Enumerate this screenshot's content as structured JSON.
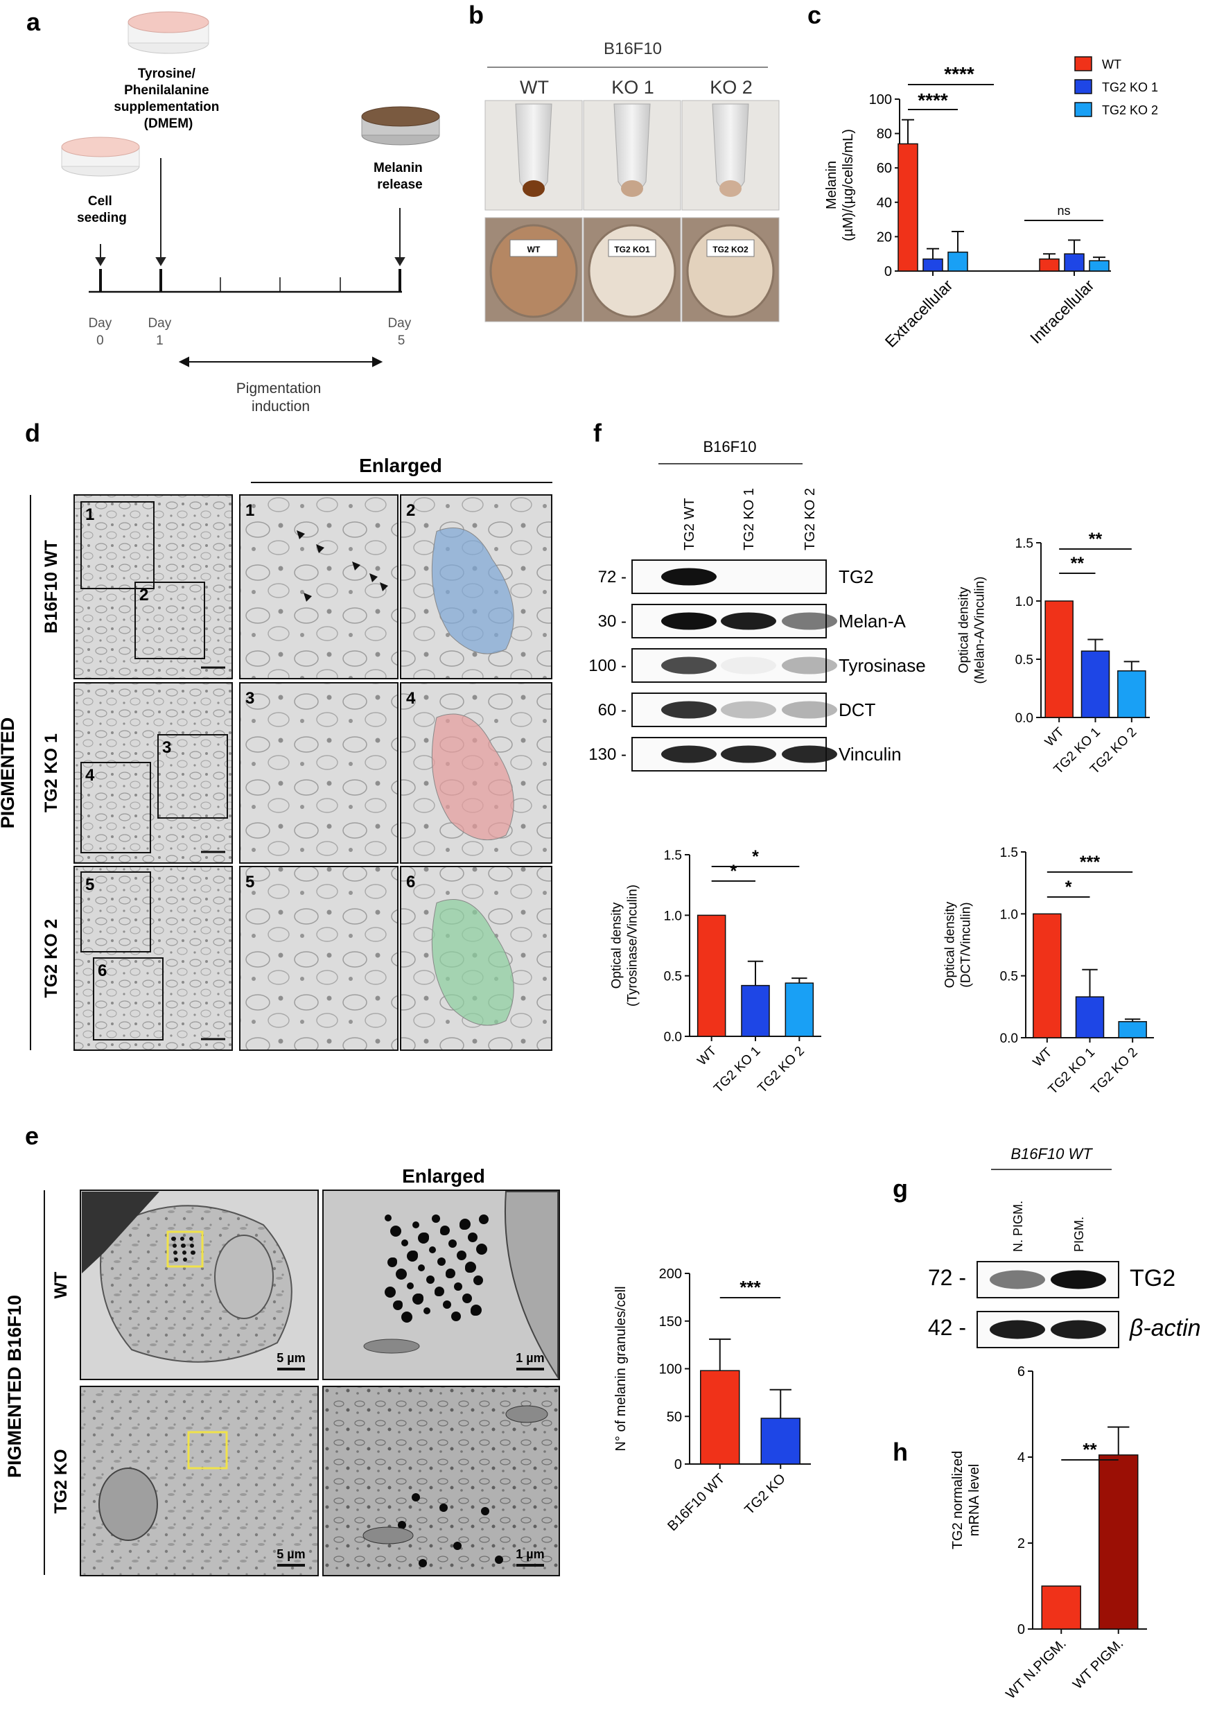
{
  "panel_a": {
    "letter": "a",
    "supplementation": [
      "Tyrosine/",
      "Phenilalanine",
      "supplementation",
      "(DMEM)"
    ],
    "seeding": [
      "Cell",
      "seeding"
    ],
    "release": [
      "Melanin",
      "release"
    ],
    "days": [
      {
        "label": "Day",
        "num": "0"
      },
      {
        "label": "Day",
        "num": "1"
      },
      {
        "label": "Day",
        "num": "5"
      }
    ],
    "induction": [
      "Pigmentation",
      "induction"
    ]
  },
  "panel_b": {
    "letter": "b",
    "cell_line": "B16F10",
    "columns": [
      "WT",
      "KO 1",
      "KO 2"
    ],
    "plate_labels": [
      "WT",
      "TG2 KO1",
      "TG2 KO2"
    ],
    "tube_pellet_colors": [
      "#7a3d14",
      "#c7a58a",
      "#cfae95"
    ],
    "plate_colors": [
      "#b58763",
      "#e9ded0",
      "#e3d2bd"
    ]
  },
  "panel_c": {
    "letter": "c",
    "significance": {
      "top": "****",
      "mid": "****",
      "ns": "ns"
    }
  },
  "panel_d": {
    "letter": "d",
    "side_label": "PIGMENTED",
    "enlarged": "Enlarged",
    "rows": [
      "B16F10 WT",
      "TG2 KO 1",
      "TG2 KO 2"
    ],
    "box_numbers": [
      [
        "1",
        "2"
      ],
      [
        "3",
        "4"
      ],
      [
        "5",
        "6"
      ]
    ],
    "highlight_colors": [
      "#7ea6d6",
      "#e69b9b",
      "#8ccf9e"
    ]
  },
  "panel_e": {
    "letter": "e",
    "side_label": "PIGMENTED B16F10",
    "enlarged": "Enlarged",
    "rows": [
      "WT",
      "TG2 KO"
    ],
    "scale_big": "5 µm",
    "scale_small": "1 µm"
  },
  "panel_f": {
    "letter": "f",
    "cell_line": "B16F10",
    "lanes": [
      "TG2 WT",
      "TG2 KO 1",
      "TG2 KO 2"
    ],
    "markers": [
      "72 -",
      "30 -",
      "100 -",
      "60 -",
      "130 -"
    ],
    "proteins": [
      "TG2",
      "Melan-A",
      "Tyrosinase",
      "DCT",
      "Vinculin"
    ],
    "band_intensity": [
      [
        1.0,
        0.0,
        0.0
      ],
      [
        1.0,
        0.95,
        0.55
      ],
      [
        0.75,
        0.05,
        0.3
      ],
      [
        0.85,
        0.25,
        0.3
      ],
      [
        0.9,
        0.9,
        0.9
      ]
    ]
  },
  "panel_g": {
    "letter": "g",
    "cell_line": "B16F10 WT",
    "lanes": [
      "N. PIGM.",
      "PIGM."
    ],
    "markers": [
      "72 -",
      "42 -"
    ],
    "proteins": [
      "TG2",
      "β-actin"
    ],
    "band_intensity": [
      [
        0.55,
        1.0
      ],
      [
        0.95,
        0.95
      ]
    ]
  },
  "panel_h": {
    "letter": "h"
  },
  "colors": {
    "red": "#f03219",
    "blue": "#1e46e6",
    "lightblue": "#19a0f5",
    "darkred": "#9b0f05"
  },
  "chart_data": [
    {
      "id": "c",
      "type": "bar",
      "ylabel": "Melanin\n(µM)/(µg/cells/mL)",
      "categories": [
        "Extracellular",
        "Intracellular"
      ],
      "ylim": [
        0,
        100
      ],
      "yticks": [
        0,
        20,
        40,
        60,
        80,
        100
      ],
      "series": [
        {
          "name": "WT",
          "color": "#f03219",
          "values": [
            74,
            7
          ],
          "errors": [
            14,
            3
          ]
        },
        {
          "name": "TG2 KO 1",
          "color": "#1e46e6",
          "values": [
            7,
            10
          ],
          "errors": [
            6,
            8
          ]
        },
        {
          "name": "TG2 KO 2",
          "color": "#19a0f5",
          "values": [
            11,
            6
          ],
          "errors": [
            12,
            2
          ]
        }
      ],
      "legend": "top-right"
    },
    {
      "id": "f1",
      "type": "bar",
      "ylabel": "Optical density\n(Melan-A/Vinculin)",
      "categories": [
        "WT",
        "TG2 KO 1",
        "TG2 KO 2"
      ],
      "colors": [
        "#f03219",
        "#1e46e6",
        "#19a0f5"
      ],
      "values": [
        1.0,
        0.57,
        0.4
      ],
      "errors": [
        0,
        0.1,
        0.08
      ],
      "ylim": [
        0,
        1.5
      ],
      "yticks": [
        "0.0",
        "0.5",
        "1.0",
        "1.5"
      ],
      "significance": [
        "**",
        "**"
      ]
    },
    {
      "id": "f2",
      "type": "bar",
      "ylabel": "Optical density\n(Tyrosinase/Vinculin)",
      "categories": [
        "WT",
        "TG2 KO 1",
        "TG2 KO 2"
      ],
      "colors": [
        "#f03219",
        "#1e46e6",
        "#19a0f5"
      ],
      "values": [
        1.0,
        0.42,
        0.44
      ],
      "errors": [
        0,
        0.2,
        0.04
      ],
      "ylim": [
        0,
        1.5
      ],
      "yticks": [
        "0.0",
        "0.5",
        "1.0",
        "1.5"
      ],
      "significance": [
        "*",
        "*"
      ]
    },
    {
      "id": "f3",
      "type": "bar",
      "ylabel": "Optical density\n(DCT/Vinculin)",
      "categories": [
        "WT",
        "TG2 KO 1",
        "TG2 KO 2"
      ],
      "colors": [
        "#f03219",
        "#1e46e6",
        "#19a0f5"
      ],
      "values": [
        1.0,
        0.33,
        0.13
      ],
      "errors": [
        0,
        0.22,
        0.02
      ],
      "ylim": [
        0,
        1.5
      ],
      "yticks": [
        "0.0",
        "0.5",
        "1.0",
        "1.5"
      ],
      "significance": [
        "*",
        "***"
      ]
    },
    {
      "id": "e",
      "type": "bar",
      "ylabel": "N° of melanin granules/cell",
      "categories": [
        "B16F10 WT",
        "TG2 KO"
      ],
      "colors": [
        "#f03219",
        "#1e46e6"
      ],
      "values": [
        98,
        48
      ],
      "errors": [
        33,
        30
      ],
      "ylim": [
        0,
        200
      ],
      "yticks": [
        "0",
        "50",
        "100",
        "150",
        "200"
      ],
      "significance": [
        "***"
      ]
    },
    {
      "id": "h",
      "type": "bar",
      "ylabel": "TG2 normalized\nmRNA level",
      "categories": [
        "WT N.PIGM.",
        "WT PIGM."
      ],
      "colors": [
        "#f03219",
        "#9b0f05"
      ],
      "values": [
        1.0,
        4.05
      ],
      "errors": [
        0,
        0.65
      ],
      "ylim": [
        0,
        6
      ],
      "yticks": [
        "0",
        "2",
        "4",
        "6"
      ],
      "significance": [
        "**"
      ]
    }
  ]
}
